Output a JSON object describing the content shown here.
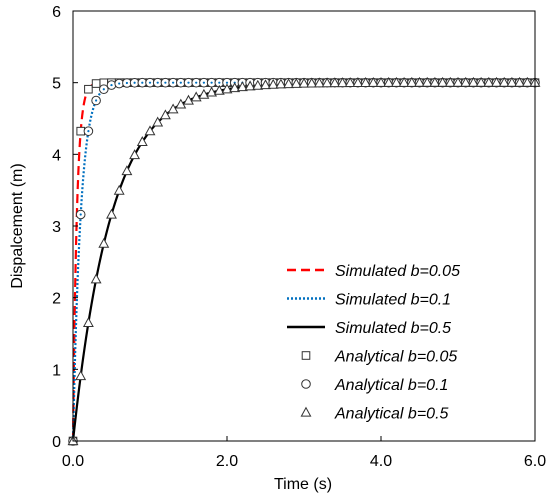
{
  "chart_data": {
    "type": "line",
    "xlabel": "Time (s)",
    "ylabel": "Dispalcement (m)",
    "xlim": [
      0,
      6
    ],
    "ylim": [
      0,
      6
    ],
    "x_ticks": [
      "0.0",
      "2.0",
      "4.0",
      "6.0"
    ],
    "y_ticks": [
      "0",
      "1",
      "2",
      "3",
      "4",
      "5",
      "6"
    ],
    "grid": false,
    "legend_position": "bottom-right",
    "final_value": 5,
    "b_values": [
      0.05,
      0.1,
      0.5
    ],
    "series": [
      {
        "name": "Simulated b=0.05",
        "kind": "line",
        "b": 0.05,
        "color": "#ff0000",
        "dash": "dashed"
      },
      {
        "name": "Simulated b=0.1",
        "kind": "line",
        "b": 0.1,
        "color": "#0070c0",
        "dash": "dotted"
      },
      {
        "name": "Simulated b=0.5",
        "kind": "line",
        "b": 0.5,
        "color": "#000000",
        "dash": "solid"
      },
      {
        "name": "Analytical b=0.05",
        "kind": "marker",
        "b": 0.05,
        "marker": "square"
      },
      {
        "name": "Analytical b=0.1",
        "kind": "marker",
        "b": 0.1,
        "marker": "circle"
      },
      {
        "name": "Analytical b=0.5",
        "kind": "marker",
        "b": 0.5,
        "marker": "triangle"
      }
    ]
  }
}
